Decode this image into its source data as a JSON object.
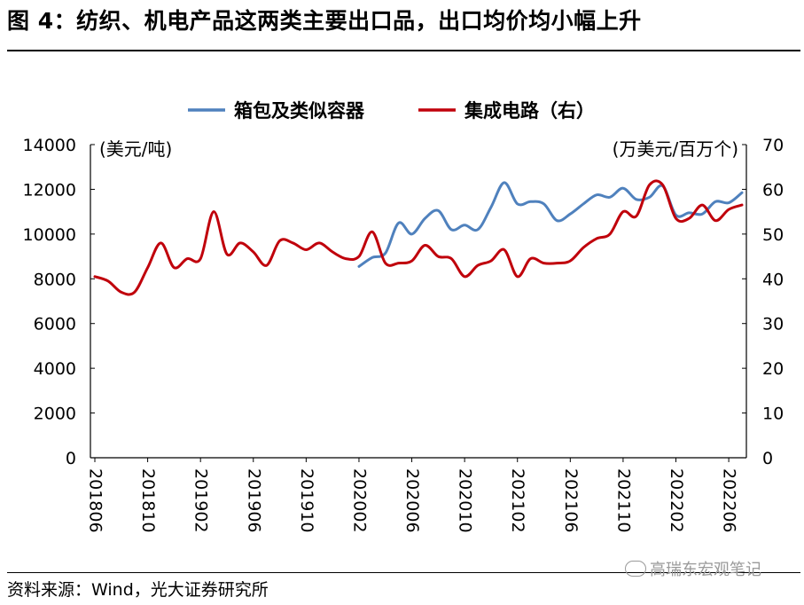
{
  "header": {
    "title": "图 4：纺织、机电产品这两类主要出口品，出口均价均小幅上升"
  },
  "footer": {
    "source": "资料来源：Wind，光大证券研究所",
    "watermark": "高瑞东宏观笔记"
  },
  "chart_data": {
    "type": "line",
    "title": "",
    "x": [
      "201806",
      "201807",
      "201808",
      "201809",
      "201810",
      "201811",
      "201812",
      "201901",
      "201902",
      "201903",
      "201904",
      "201905",
      "201906",
      "201907",
      "201908",
      "201909",
      "201910",
      "201911",
      "201912",
      "202001",
      "202002",
      "202003",
      "202004",
      "202005",
      "202006",
      "202007",
      "202008",
      "202009",
      "202010",
      "202011",
      "202012",
      "202101",
      "202102",
      "202103",
      "202104",
      "202105",
      "202106",
      "202107",
      "202108",
      "202109",
      "202110",
      "202111",
      "202112",
      "202201",
      "202202",
      "202203",
      "202204",
      "202205",
      "202206",
      "202207"
    ],
    "x_tick_labels": [
      "201806",
      "201810",
      "201902",
      "201906",
      "201910",
      "202002",
      "202006",
      "202010",
      "202102",
      "202106",
      "202110",
      "202202",
      "202206"
    ],
    "y_left": {
      "label": "(美元/吨)",
      "ylim": [
        0,
        14000
      ],
      "ticks": [
        "0",
        "2000",
        "4000",
        "6000",
        "8000",
        "10000",
        "12000",
        "14000"
      ]
    },
    "y_right": {
      "label": "(万美元/百万个)",
      "ylim": [
        0,
        70
      ],
      "ticks": [
        "0",
        "10",
        "20",
        "30",
        "40",
        "50",
        "60",
        "70"
      ]
    },
    "grid": false,
    "legend_position": "top-center",
    "series": [
      {
        "name": "箱包及类似容器",
        "axis": "left",
        "color": "#4f81bd",
        "values": [
          null,
          null,
          null,
          null,
          null,
          null,
          null,
          null,
          null,
          null,
          null,
          null,
          null,
          null,
          null,
          null,
          null,
          null,
          null,
          null,
          8550,
          8950,
          9150,
          10500,
          10000,
          10700,
          11050,
          10200,
          10400,
          10200,
          11200,
          12300,
          11350,
          11450,
          11350,
          10600,
          10900,
          11350,
          11750,
          11650,
          12050,
          11550,
          11650,
          12150,
          10850,
          10950,
          10900,
          11450,
          11400,
          11850
        ]
      },
      {
        "name": "集成电路（右）",
        "axis": "right",
        "color": "#c0000b",
        "values": [
          40.5,
          39.5,
          37,
          37,
          42.5,
          48,
          42.5,
          44.5,
          44.5,
          55,
          45.5,
          48,
          46,
          43,
          48.5,
          48,
          46.5,
          48,
          46,
          44.5,
          45,
          50.5,
          43.5,
          43.5,
          44,
          47.5,
          45,
          44.5,
          40.5,
          43,
          44,
          46.5,
          40.5,
          44.5,
          43.5,
          43.5,
          44,
          47,
          49,
          50,
          55,
          54,
          61,
          61,
          53.5,
          53.5,
          56.5,
          53,
          55.5,
          56.5
        ]
      }
    ]
  }
}
